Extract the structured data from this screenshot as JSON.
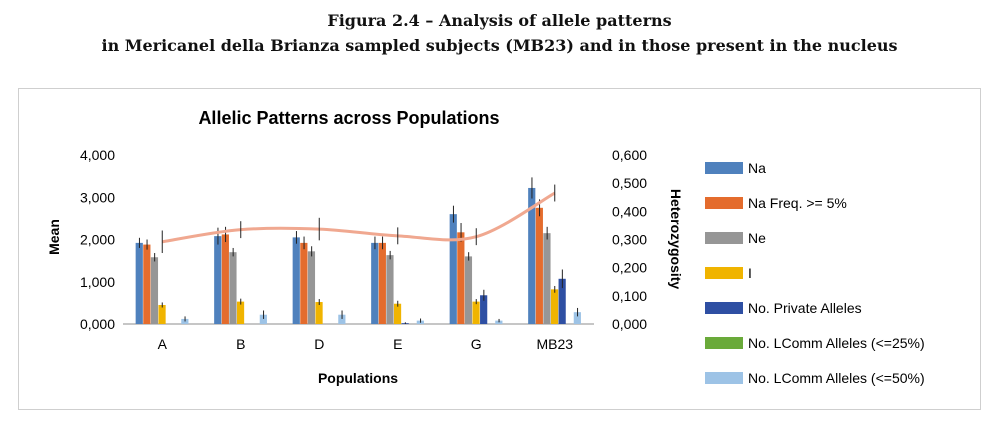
{
  "caption": {
    "line1": "Figura 2.4 – Analysis of allele patterns",
    "line2": "in Mericanel della Brianza sampled subjects (MB23) and in those present in the nucleus"
  },
  "chart_data": {
    "type": "bar",
    "title": "Allelic Patterns across Populations",
    "xlabel": "Populations",
    "ylabel": "Mean",
    "y2label": "Heterozygosity",
    "categories": [
      "A",
      "B",
      "D",
      "E",
      "G",
      "MB23"
    ],
    "ylim": [
      0,
      4
    ],
    "y2lim": [
      0,
      0.6
    ],
    "yticks": [
      "0,000",
      "1,000",
      "2,000",
      "3,000",
      "4,000"
    ],
    "y2ticks": [
      "0,000",
      "0,100",
      "0,200",
      "0,300",
      "0,400",
      "0,500",
      "0,600"
    ],
    "grid": false,
    "legend_position": "right",
    "series": [
      {
        "name": "Na",
        "color": "#4f81bd",
        "values": [
          1.92,
          2.08,
          2.05,
          1.92,
          2.6,
          3.22
        ],
        "errors": [
          0.12,
          0.2,
          0.15,
          0.15,
          0.2,
          0.25
        ]
      },
      {
        "name": "Na Freq. >= 5%",
        "color": "#e46c2d",
        "values": [
          1.88,
          2.12,
          1.92,
          1.92,
          2.17,
          2.75
        ],
        "errors": [
          0.12,
          0.18,
          0.15,
          0.15,
          0.22,
          0.2
        ]
      },
      {
        "name": "Ne",
        "color": "#969696",
        "values": [
          1.58,
          1.7,
          1.72,
          1.63,
          1.6,
          2.15
        ],
        "errors": [
          0.1,
          0.1,
          0.12,
          0.1,
          0.1,
          0.15
        ]
      },
      {
        "name": "I",
        "color": "#f0b400",
        "values": [
          0.45,
          0.53,
          0.52,
          0.48,
          0.53,
          0.82
        ],
        "errors": [
          0.06,
          0.07,
          0.07,
          0.07,
          0.06,
          0.08
        ]
      },
      {
        "name": "No. Private Alleles",
        "color": "#2e4fa3",
        "values": [
          0,
          0,
          0,
          0.02,
          0.68,
          1.07
        ],
        "errors": [
          0,
          0,
          0,
          0.02,
          0.13,
          0.22
        ]
      },
      {
        "name": "No. LComm Alleles (<=25%)",
        "color": "#6aaa3a",
        "values": [
          0,
          0,
          0,
          0,
          0,
          0
        ],
        "errors": [
          0,
          0,
          0,
          0,
          0,
          0
        ]
      },
      {
        "name": "No. LComm Alleles (<=50%)",
        "color": "#9dc3e6",
        "values": [
          0.12,
          0.22,
          0.22,
          0.08,
          0.08,
          0.28
        ],
        "errors": [
          0.06,
          0.1,
          0.1,
          0.05,
          0.04,
          0.1
        ]
      }
    ],
    "heterozygosity": {
      "color": "#f0a890",
      "values": [
        0.292,
        0.335,
        0.337,
        0.313,
        0.31,
        0.465
      ],
      "errors": [
        0.04,
        0.03,
        0.04,
        0.03,
        0.03,
        0.03
      ]
    }
  }
}
